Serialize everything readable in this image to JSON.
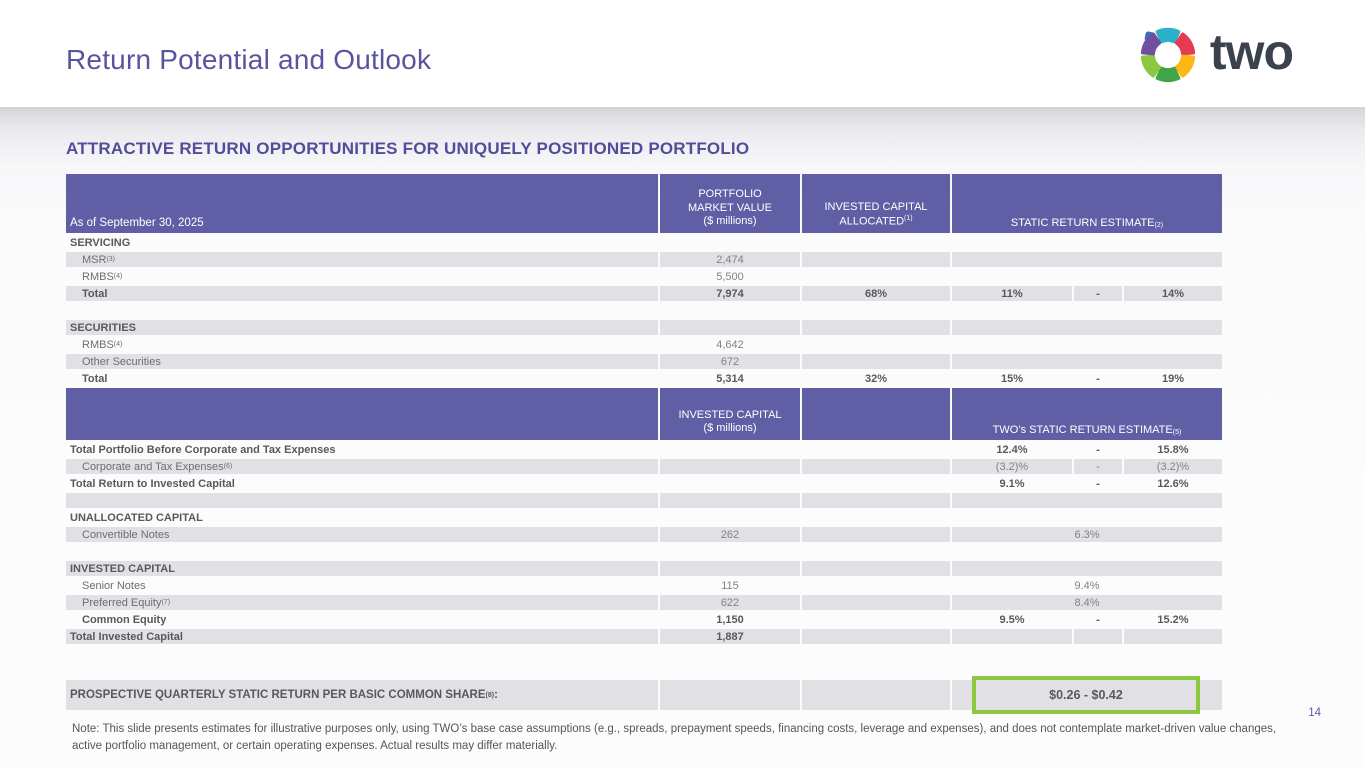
{
  "slide": {
    "title": "Return Potential and Outlook",
    "heading": "ATTRACTIVE RETURN OPPORTUNITIES FOR UNIQUELY POSITIONED PORTFOLIO",
    "page_number": "14",
    "note": "Note: This slide presents estimates for illustrative purposes only, using TWO’s base case assumptions (e.g., spreads, prepayment speeds, financing costs, leverage and expenses), and does not contemplate market-driven value changes, active portfolio management, or certain operating expenses. Actual results may differ materially."
  },
  "logo": {
    "text": "two",
    "mark_colors": [
      "#2cb0c7",
      "#e63a52",
      "#fdb714",
      "#3fa548",
      "#8dc63f",
      "#6f4f9e",
      "#2d74b9"
    ],
    "text_color": "#3a424d"
  },
  "colors": {
    "header_purple": "#605fa5",
    "title_purple": "#5a549f",
    "row_gray": "#e1e1e5",
    "accent_green": "#8dc63f",
    "text_dark": "#58595b",
    "text_value": "#818286"
  },
  "table": {
    "header1": {
      "date_label": "As of September 30, 2025",
      "col1_line1": "PORTFOLIO",
      "col1_line2": "MARKET VALUE",
      "col1_line3": "($ millions)",
      "col2_line1": "INVESTED CAPITAL",
      "col2_line2": "ALLOCATED",
      "col2_sup": "(1)",
      "col3": "STATIC RETURN ESTIMATE",
      "col3_sup": "(2)"
    },
    "header2": {
      "col1_line1": "INVESTED CAPITAL",
      "col1_line2": "($ millions)",
      "col3": "TWO’s STATIC RETURN ESTIMATE",
      "col3_sup": "(5)"
    },
    "rows": [
      {
        "label": "SERVICING",
        "bold": true,
        "gray": false
      },
      {
        "label": "MSR",
        "sup": "(3)",
        "indent": true,
        "gray": true,
        "mv": "2,474"
      },
      {
        "label": "RMBS",
        "sup": "(4)",
        "indent": true,
        "gray": false,
        "mv": "5,500"
      },
      {
        "label": "Total",
        "indent": true,
        "bold": true,
        "gray": true,
        "mv": "7,974",
        "alloc": "68%",
        "split": true,
        "rlow": "11%",
        "rdash": "-",
        "rhigh": "14%"
      },
      {
        "spacer": true,
        "gray": false
      },
      {
        "label": "SECURITIES",
        "bold": true,
        "gray": true
      },
      {
        "label": "RMBS",
        "sup": "(4)",
        "indent": true,
        "gray": false,
        "mv": "4,642"
      },
      {
        "label": "Other Securities",
        "indent": true,
        "gray": true,
        "mv": "672"
      },
      {
        "label": "Total",
        "indent": true,
        "bold": true,
        "gray": false,
        "mv": "5,314",
        "alloc": "32%",
        "split": true,
        "rlow": "15%",
        "rdash": "-",
        "rhigh": "19%"
      }
    ],
    "rows2": [
      {
        "label": "Total Portfolio Before Corporate and Tax Expenses",
        "bold": true,
        "gray": false,
        "split": true,
        "rlow": "12.4%",
        "rdash": "-",
        "rhigh": "15.8%"
      },
      {
        "label": "Corporate and Tax Expenses",
        "sup": "(6)",
        "indent": true,
        "gray": true,
        "split": true,
        "rlow": "(3.2)%",
        "rdash": "-",
        "rhigh": "(3.2)%"
      },
      {
        "label": "Total Return to Invested Capital",
        "bold": true,
        "gray": false,
        "split": true,
        "rlow": "9.1%",
        "rdash": "-",
        "rhigh": "12.6%"
      },
      {
        "spacer": true,
        "gray": true
      },
      {
        "label": "UNALLOCATED CAPITAL",
        "bold": true,
        "gray": false
      },
      {
        "label": "Convertible Notes",
        "indent": true,
        "gray": true,
        "mv": "262",
        "rmerge": "6.3%"
      },
      {
        "spacer": true,
        "gray": false
      },
      {
        "label": "INVESTED CAPITAL",
        "bold": true,
        "gray": true
      },
      {
        "label": "Senior Notes",
        "indent": true,
        "gray": false,
        "mv": "115",
        "rmerge": "9.4%"
      },
      {
        "label": "Preferred Equity",
        "sup": "(7)",
        "indent": true,
        "gray": true,
        "mv": "622",
        "rmerge": "8.4%"
      },
      {
        "label": "Common Equity",
        "indent": true,
        "bold": true,
        "gray": false,
        "mv": "1,150",
        "split": true,
        "rlow": "9.5%",
        "rdash": "-",
        "rhigh": "15.2%"
      },
      {
        "label": "Total Invested Capital",
        "bold": true,
        "gray": true,
        "mv": "1,887",
        "split": true
      },
      {
        "spacer": true,
        "gray": false
      }
    ]
  },
  "prospective": {
    "label": "PROSPECTIVE QUARTERLY STATIC RETURN PER BASIC COMMON SHARE",
    "sup": "(8)",
    "colon": ":",
    "value": "$0.26 - $0.42"
  }
}
